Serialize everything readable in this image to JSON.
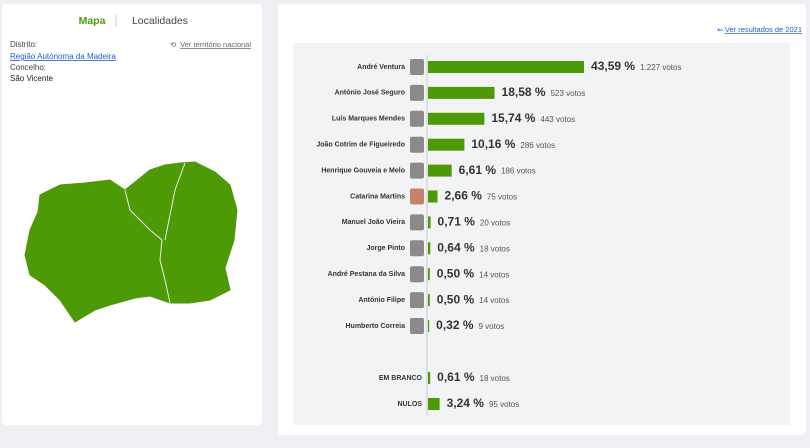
{
  "tabs": [
    "Mapa",
    "Localidades"
  ],
  "location": {
    "district_label": "Distrito:",
    "district": "Região Autónoma da Madeira",
    "national_link": "Ver território nacional",
    "county_label": "Concelho:",
    "county": "São Vicente"
  },
  "results_link": "Ver resultados de 2021",
  "chart_data": {
    "type": "bar",
    "categories": [
      "André Ventura",
      "António José Seguro",
      "Luís Marques Mendes",
      "João Cotrim de Figueiredo",
      "Henrique Gouveia e Melo",
      "Catarina Martins",
      "Manuel João Vieira",
      "Jorge Pinto",
      "André Pestana da Silva",
      "António Filipe",
      "Humberto Correia",
      "EM BRANCO",
      "NULOS"
    ],
    "values": [
      43.59,
      18.58,
      15.74,
      10.16,
      6.61,
      2.66,
      0.71,
      0.64,
      0.5,
      0.5,
      0.32,
      0.61,
      3.24
    ],
    "value_labels": [
      "43,59 %",
      "18,58 %",
      "15,74 %",
      "10,16 %",
      "6,61 %",
      "2,66 %",
      "0,71 %",
      "0,64 %",
      "0,50 %",
      "0,50 %",
      "0,32 %",
      "0,61 %",
      "3,24 %"
    ],
    "votes": [
      1227,
      523,
      443,
      286,
      186,
      75,
      20,
      18,
      14,
      14,
      9,
      18,
      95
    ],
    "votes_labels": [
      "1.227 votos",
      "523 votos",
      "443 votos",
      "286 votos",
      "186 votos",
      "75 votos",
      "20 votos",
      "18 votos",
      "14 votos",
      "14 votos",
      "9 votos",
      "18 votos",
      "95 votos"
    ],
    "color": "#4e9a06"
  }
}
